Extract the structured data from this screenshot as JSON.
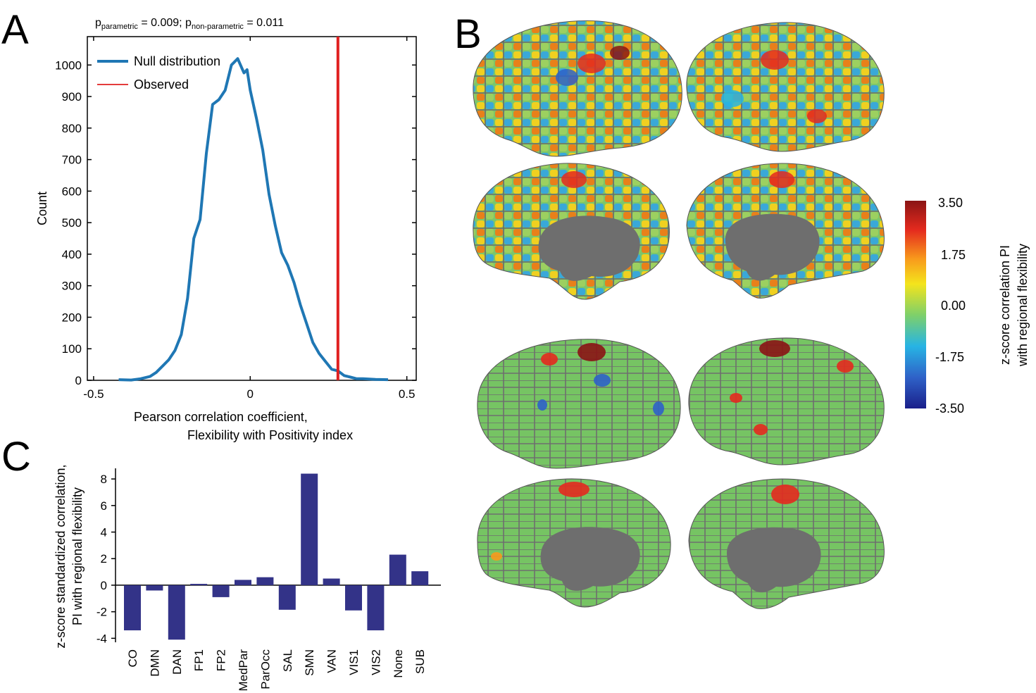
{
  "panels": {
    "a": "A",
    "b": "B",
    "c": "C"
  },
  "pvalues": {
    "p_sym": "p",
    "param_sub": "parametric",
    "param_val": " = 0.009; ",
    "nonparam_sub": "non-parametric",
    "nonparam_val": " = 0.011"
  },
  "colorbar": {
    "ticks": [
      "3.50",
      "1.75",
      "0.00",
      "-1.75",
      "-3.50"
    ],
    "tick_values": [
      3.5,
      1.75,
      0,
      -1.75,
      -3.5
    ],
    "label_line1": "z-score correlation PI",
    "label_line2": "with regional flexibility",
    "colormap": [
      "#1a1f8a",
      "#2f62c8",
      "#27b4e4",
      "#7ed06a",
      "#f4e41c",
      "#f89a1c",
      "#e42a1e",
      "#8b1414"
    ]
  },
  "colors": {
    "null_line": "#1f77b4",
    "observed_line": "#e02020",
    "bar": "#333388",
    "brain_bg": "#7a7a7a",
    "medial_wall": "#6e6e6e"
  },
  "chart_data": [
    {
      "type": "line",
      "xlabel_line1": "Pearson correlation coefficient,",
      "xlabel_line2": "Flexibility with Positivity index",
      "ylabel": "Count",
      "xlim": [
        -0.52,
        0.53
      ],
      "ylim": [
        0,
        1090
      ],
      "x_ticks": [
        -0.5,
        0,
        0.5
      ],
      "x_tick_labels": [
        "-0.5",
        "0",
        "0.5"
      ],
      "y_ticks": [
        0,
        100,
        200,
        300,
        400,
        500,
        600,
        700,
        800,
        900,
        1000
      ],
      "y_tick_labels": [
        "0",
        "100",
        "200",
        "300",
        "400",
        "500",
        "600",
        "700",
        "800",
        "900",
        "1000"
      ],
      "legend": [
        "Null distribution",
        "Observed"
      ],
      "legend_position": "top-left",
      "series": [
        {
          "name": "Null distribution",
          "x": [
            -0.42,
            -0.38,
            -0.35,
            -0.32,
            -0.3,
            -0.28,
            -0.26,
            -0.24,
            -0.22,
            -0.2,
            -0.18,
            -0.16,
            -0.14,
            -0.12,
            -0.1,
            -0.08,
            -0.06,
            -0.04,
            -0.02,
            -0.01,
            0.0,
            0.02,
            0.04,
            0.06,
            0.08,
            0.1,
            0.12,
            0.14,
            0.16,
            0.18,
            0.2,
            0.22,
            0.24,
            0.26,
            0.28,
            0.3,
            0.32,
            0.34,
            0.36,
            0.4,
            0.44
          ],
          "y": [
            2,
            1,
            5,
            12,
            25,
            45,
            65,
            95,
            145,
            260,
            450,
            510,
            720,
            875,
            890,
            920,
            1000,
            1020,
            975,
            985,
            920,
            830,
            730,
            590,
            490,
            405,
            365,
            310,
            240,
            180,
            120,
            85,
            60,
            35,
            30,
            15,
            10,
            5,
            5,
            3,
            2
          ]
        },
        {
          "name": "Observed",
          "x": [
            0.28,
            0.28
          ],
          "y": [
            0,
            1090
          ]
        }
      ]
    },
    {
      "type": "bar",
      "ylabel_line1": "z-score standardized correlation,",
      "ylabel_line2": "PI with regional flexibility",
      "ylim": [
        -4.3,
        8.8
      ],
      "y_ticks": [
        -4,
        -2,
        0,
        2,
        4,
        6,
        8
      ],
      "y_tick_labels": [
        "-4",
        "-2",
        "0",
        "2",
        "4",
        "6",
        "8"
      ],
      "categories": [
        "CO",
        "DMN",
        "DAN",
        "FP1",
        "FP2",
        "MedPar",
        "ParOcc",
        "SAL",
        "SMN",
        "VAN",
        "VIS1",
        "VIS2",
        "None",
        "SUB"
      ],
      "values": [
        -3.4,
        -0.4,
        -4.1,
        0.1,
        -0.9,
        0.4,
        0.6,
        -1.85,
        8.4,
        0.5,
        -1.9,
        -3.4,
        2.3,
        1.05
      ]
    }
  ]
}
